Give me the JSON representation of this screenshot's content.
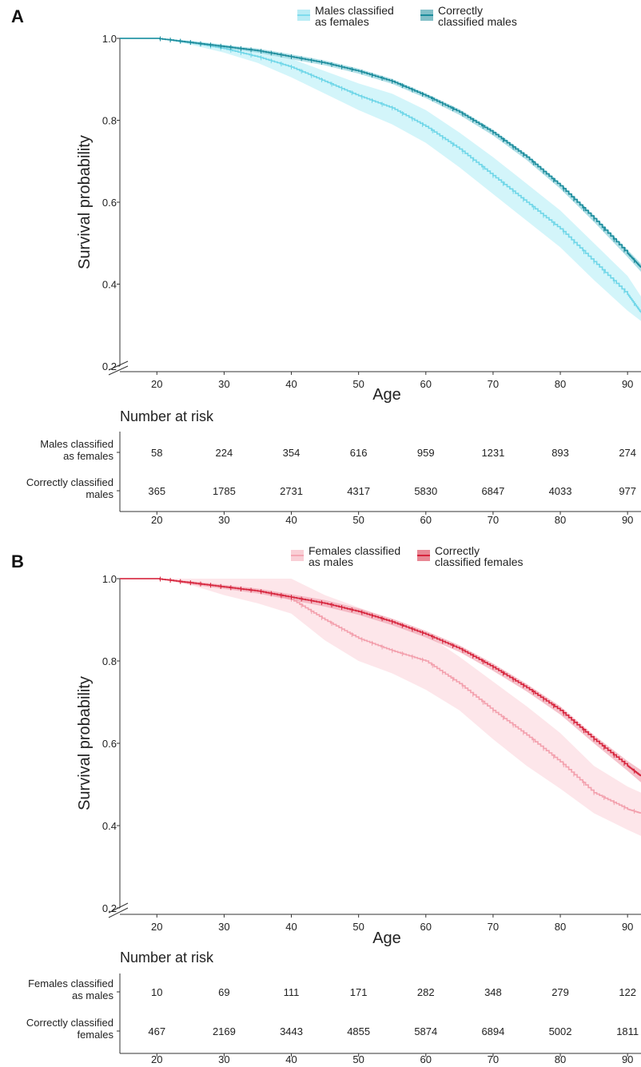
{
  "axis_break_marker": "//",
  "chart_data": [
    {
      "panel_label": "A",
      "type": "line",
      "subtype": "kaplan-meier survival curves with confidence bands",
      "xlabel": "Age",
      "ylabel": "Survival probability",
      "xlim": [
        14.5,
        92
      ],
      "ylim": [
        0.2,
        1.0
      ],
      "x_ticks": [
        20,
        30,
        40,
        50,
        60,
        70,
        80,
        90
      ],
      "y_ticks": [
        0.2,
        0.4,
        0.6,
        0.8,
        1.0
      ],
      "y_tick_labels": [
        "0.2",
        "0.4",
        "0.6",
        "0.8",
        "1.0"
      ],
      "grid": false,
      "legend_position": "top",
      "legend": [
        {
          "label_lines": [
            "Males classified",
            "as females"
          ],
          "color": "#7fdced"
        },
        {
          "label_lines": [
            "Correctly",
            "classified males"
          ],
          "color": "#1b8b9b"
        }
      ],
      "series": [
        {
          "name": "Males classified as females",
          "color": "#6fd6e8",
          "band_color": "#b6eef7",
          "x": [
            14.5,
            20,
            25,
            30,
            35,
            40,
            45,
            50,
            55,
            60,
            65,
            70,
            75,
            80,
            85,
            90,
            92
          ],
          "y": [
            1.0,
            1.0,
            0.99,
            0.975,
            0.955,
            0.93,
            0.895,
            0.86,
            0.83,
            0.785,
            0.73,
            0.665,
            0.6,
            0.535,
            0.455,
            0.375,
            0.33
          ],
          "ci_lower": [
            1.0,
            1.0,
            0.985,
            0.965,
            0.94,
            0.905,
            0.865,
            0.825,
            0.79,
            0.745,
            0.685,
            0.62,
            0.555,
            0.49,
            0.41,
            0.335,
            0.31
          ],
          "ci_upper": [
            1.0,
            1.0,
            0.995,
            0.985,
            0.97,
            0.95,
            0.92,
            0.89,
            0.865,
            0.825,
            0.77,
            0.71,
            0.645,
            0.58,
            0.5,
            0.42,
            0.37
          ]
        },
        {
          "name": "Correctly classified males",
          "color": "#1b8b9b",
          "band_color": "#7ccad6",
          "x": [
            14.5,
            20,
            25,
            30,
            35,
            40,
            45,
            50,
            55,
            60,
            65,
            70,
            75,
            80,
            85,
            90,
            92
          ],
          "y": [
            1.0,
            1.0,
            0.99,
            0.98,
            0.97,
            0.955,
            0.94,
            0.92,
            0.895,
            0.86,
            0.82,
            0.77,
            0.71,
            0.64,
            0.56,
            0.475,
            0.44
          ],
          "ci_lower": [
            1.0,
            1.0,
            0.987,
            0.976,
            0.965,
            0.949,
            0.934,
            0.914,
            0.889,
            0.854,
            0.813,
            0.763,
            0.703,
            0.633,
            0.552,
            0.466,
            0.43
          ],
          "ci_upper": [
            1.0,
            1.0,
            0.993,
            0.984,
            0.975,
            0.961,
            0.946,
            0.926,
            0.901,
            0.866,
            0.827,
            0.777,
            0.717,
            0.647,
            0.568,
            0.484,
            0.45
          ]
        }
      ],
      "risk_table": {
        "title": "Number at risk",
        "x_ticks": [
          20,
          30,
          40,
          50,
          60,
          70,
          80,
          90
        ],
        "rows": [
          {
            "label_lines": [
              "Males classified",
              "as females"
            ],
            "values": [
              58,
              224,
              354,
              616,
              959,
              1231,
              893,
              274
            ]
          },
          {
            "label_lines": [
              "Correctly classified",
              "males"
            ],
            "values": [
              365,
              1785,
              2731,
              4317,
              5830,
              6847,
              4033,
              977
            ]
          }
        ]
      }
    },
    {
      "panel_label": "B",
      "type": "line",
      "subtype": "kaplan-meier survival curves with confidence bands",
      "xlabel": "Age",
      "ylabel": "Survival probability",
      "xlim": [
        14.5,
        92
      ],
      "ylim": [
        0.2,
        1.0
      ],
      "x_ticks": [
        20,
        30,
        40,
        50,
        60,
        70,
        80,
        90
      ],
      "y_ticks": [
        0.2,
        0.4,
        0.6,
        0.8,
        1.0
      ],
      "y_tick_labels": [
        "0.2",
        "0.4",
        "0.6",
        "0.8",
        "1.0"
      ],
      "grid": false,
      "legend_position": "top",
      "legend": [
        {
          "label_lines": [
            "Females classified",
            "as males"
          ],
          "color": "#f4a7b4"
        },
        {
          "label_lines": [
            "Correctly",
            "classified females"
          ],
          "color": "#d6243c"
        }
      ],
      "series": [
        {
          "name": "Females classified as males",
          "color": "#f3a0ad",
          "band_color": "#fbd6dc",
          "x": [
            14.5,
            20,
            25,
            30,
            35,
            40,
            45,
            50,
            55,
            60,
            65,
            70,
            75,
            80,
            85,
            90,
            92
          ],
          "y": [
            1.0,
            1.0,
            0.99,
            0.98,
            0.97,
            0.95,
            0.9,
            0.855,
            0.825,
            0.8,
            0.745,
            0.68,
            0.62,
            0.555,
            0.48,
            0.44,
            0.43
          ],
          "ci_lower": [
            1.0,
            1.0,
            0.985,
            0.96,
            0.94,
            0.915,
            0.85,
            0.8,
            0.77,
            0.73,
            0.68,
            0.61,
            0.545,
            0.49,
            0.43,
            0.39,
            0.375
          ],
          "ci_upper": [
            1.0,
            1.0,
            1.0,
            1.0,
            1.0,
            1.0,
            0.96,
            0.93,
            0.9,
            0.865,
            0.81,
            0.75,
            0.69,
            0.625,
            0.545,
            0.495,
            0.48
          ]
        },
        {
          "name": "Correctly classified females",
          "color": "#d6243c",
          "band_color": "#ee9aa8",
          "x": [
            14.5,
            20,
            25,
            30,
            35,
            40,
            45,
            50,
            55,
            60,
            65,
            70,
            75,
            80,
            85,
            90,
            92
          ],
          "y": [
            1.0,
            1.0,
            0.99,
            0.98,
            0.97,
            0.955,
            0.94,
            0.92,
            0.895,
            0.865,
            0.83,
            0.785,
            0.735,
            0.68,
            0.61,
            0.545,
            0.52
          ],
          "ci_lower": [
            1.0,
            1.0,
            0.986,
            0.975,
            0.964,
            0.948,
            0.932,
            0.912,
            0.887,
            0.857,
            0.822,
            0.776,
            0.726,
            0.67,
            0.6,
            0.533,
            0.505
          ],
          "ci_upper": [
            1.0,
            1.0,
            0.994,
            0.985,
            0.976,
            0.962,
            0.948,
            0.928,
            0.903,
            0.873,
            0.838,
            0.794,
            0.744,
            0.69,
            0.62,
            0.557,
            0.535
          ]
        }
      ],
      "risk_table": {
        "title": "Number at risk",
        "x_ticks": [
          20,
          30,
          40,
          50,
          60,
          70,
          80,
          90
        ],
        "rows": [
          {
            "label_lines": [
              "Females classified",
              "as males"
            ],
            "values": [
              10,
              69,
              111,
              171,
              282,
              348,
              279,
              122
            ]
          },
          {
            "label_lines": [
              "Correctly classified",
              "females"
            ],
            "values": [
              467,
              2169,
              3443,
              4855,
              5874,
              6894,
              5002,
              1811
            ]
          }
        ]
      }
    }
  ]
}
